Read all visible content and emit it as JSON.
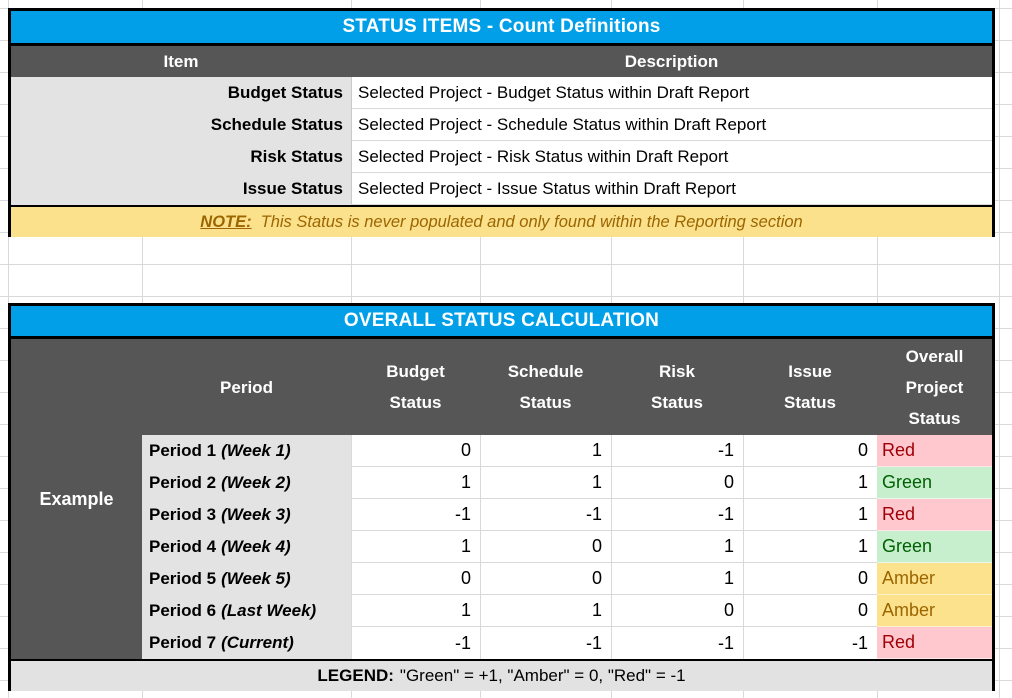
{
  "colors": {
    "accent_blue": "#009FE8",
    "header_dark_gray": "#565656",
    "label_light_gray": "#E3E3E3",
    "note_amber_bg": "#FBE18C",
    "note_amber_text": "#9C6500",
    "status_red_bg": "#FFC7CE",
    "status_red_text": "#9C0006",
    "status_green_bg": "#C7EFCE",
    "status_green_text": "#006100",
    "status_amber_bg": "#FCE28C",
    "status_amber_text": "#9C6500"
  },
  "table1": {
    "title": "STATUS ITEMS - Count Definitions",
    "columns": {
      "item": "Item",
      "description": "Description"
    },
    "rows": [
      {
        "item": "Budget Status",
        "description": "Selected Project - Budget Status within Draft Report"
      },
      {
        "item": "Schedule Status",
        "description": "Selected Project - Schedule Status within Draft Report"
      },
      {
        "item": "Risk Status",
        "description": "Selected Project - Risk Status within Draft Report"
      },
      {
        "item": "Issue Status",
        "description": "Selected Project - Issue Status within Draft Report"
      }
    ],
    "note": {
      "label": "NOTE:",
      "text": "This Status is never populated and only found within the Reporting section"
    }
  },
  "table2": {
    "title": "OVERALL STATUS CALCULATION",
    "row_group_label": "Example",
    "headers": {
      "period": "Period",
      "budget": "Budget Status",
      "schedule": "Schedule Status",
      "risk": "Risk Status",
      "issue": "Issue Status",
      "overall": "Overall Project Status"
    },
    "rows": [
      {
        "period": "Period 1",
        "period_note": "(Week 1)",
        "budget": "0",
        "schedule": "1",
        "risk": "-1",
        "issue": "0",
        "overall": "Red"
      },
      {
        "period": "Period 2",
        "period_note": "(Week 2)",
        "budget": "1",
        "schedule": "1",
        "risk": "0",
        "issue": "1",
        "overall": "Green"
      },
      {
        "period": "Period 3",
        "period_note": "(Week 3)",
        "budget": "-1",
        "schedule": "-1",
        "risk": "-1",
        "issue": "1",
        "overall": "Red"
      },
      {
        "period": "Period 4",
        "period_note": "(Week 4)",
        "budget": "1",
        "schedule": "0",
        "risk": "1",
        "issue": "1",
        "overall": "Green"
      },
      {
        "period": "Period 5",
        "period_note": "(Week 5)",
        "budget": "0",
        "schedule": "0",
        "risk": "1",
        "issue": "0",
        "overall": "Amber"
      },
      {
        "period": "Period 6",
        "period_note": "(Last Week)",
        "budget": "1",
        "schedule": "1",
        "risk": "0",
        "issue": "0",
        "overall": "Amber"
      },
      {
        "period": "Period 7",
        "period_note": "(Current)",
        "budget": "-1",
        "schedule": "-1",
        "risk": "-1",
        "issue": "-1",
        "overall": "Red"
      }
    ],
    "legend": {
      "label": "LEGEND:",
      "text": "\"Green\" = +1, \"Amber\" = 0, \"Red\" = -1"
    }
  }
}
